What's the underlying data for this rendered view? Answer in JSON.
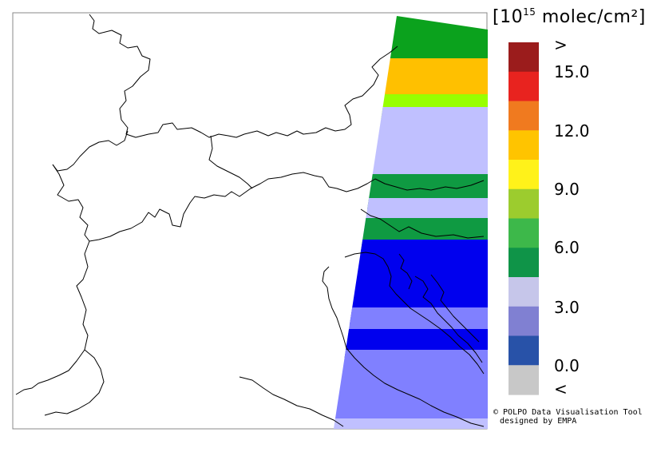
{
  "legend": {
    "units_prefix": "[10",
    "units_exponent": "15",
    "units_suffix": " molec/cm²]",
    "labels": {
      "over": ">",
      "l15": "15.0",
      "l12": "12.0",
      "l9": "9.0",
      "l6": "6.0",
      "l3": "3.0",
      "l0": "0.0",
      "under": "<"
    },
    "bins": [
      {
        "color": "#9b1c1c"
      },
      {
        "color": "#e8231f"
      },
      {
        "color": "#f07a1f"
      },
      {
        "color": "#ffc400"
      },
      {
        "color": "#fff21a"
      },
      {
        "color": "#9ccc2e"
      },
      {
        "color": "#3db84a"
      },
      {
        "color": "#0f9448"
      },
      {
        "color": "#c6c6ea"
      },
      {
        "color": "#8080d2"
      },
      {
        "color": "#2852a8"
      },
      {
        "color": "#c8c8c8"
      }
    ]
  },
  "swath_colors": {
    "green": "#0ba21d",
    "orange": "#ffc000",
    "yellow_green": "#98ff00",
    "lavender": "#c0c0ff",
    "dark_green": "#0f9a42",
    "blue": "#0000ee",
    "medium_blue": "#8080ff"
  },
  "credit": {
    "line1": "© POLPO Data Visualisation Tool",
    "line2": "designed by EMPA"
  }
}
